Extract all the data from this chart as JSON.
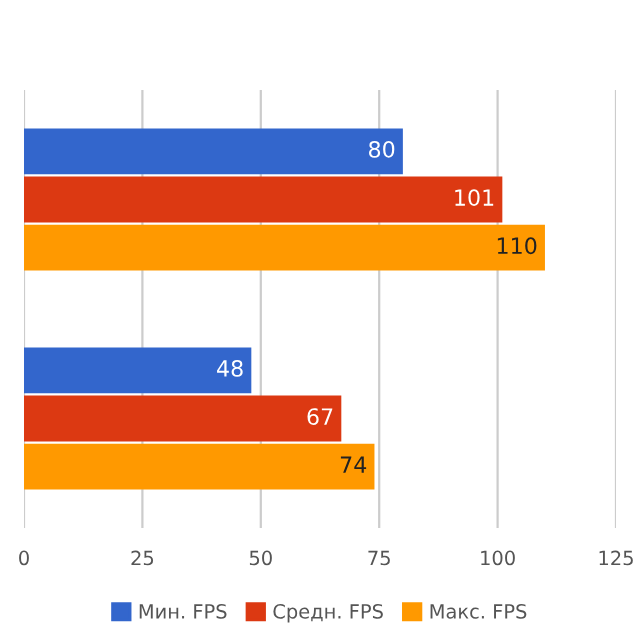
{
  "chart_data": {
    "type": "bar",
    "orientation": "horizontal",
    "categories": [
      null,
      null
    ],
    "series": [
      {
        "name": "Мин. FPS",
        "color": "#3366cc",
        "values": [
          80,
          48
        ]
      },
      {
        "name": "Средн. FPS",
        "color": "#dc3912",
        "values": [
          101,
          67
        ]
      },
      {
        "name": "Макс. FPS",
        "color": "#ff9900",
        "values": [
          110,
          74
        ]
      }
    ],
    "xlim": [
      0,
      125
    ],
    "xticks": [
      0,
      25,
      50,
      75,
      100,
      125
    ],
    "grid": "x",
    "data_labels": true,
    "legend": "bottom"
  }
}
